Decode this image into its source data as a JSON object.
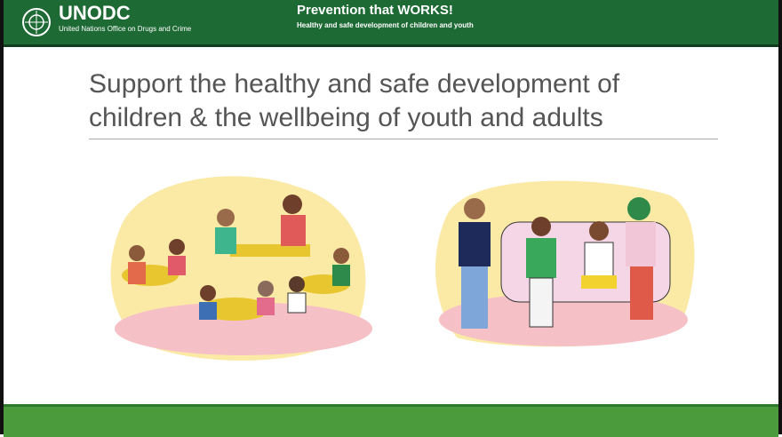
{
  "header": {
    "logo_text": "UNODC",
    "org_name": "United Nations Office on Drugs and Crime",
    "title": "Prevention that WORKS!",
    "subtitle": "Healthy and safe development of children and youth"
  },
  "slide": {
    "title_lines": [
      "Support the healthy and safe development of",
      "children & the wellbeing of youth and adults"
    ]
  }
}
